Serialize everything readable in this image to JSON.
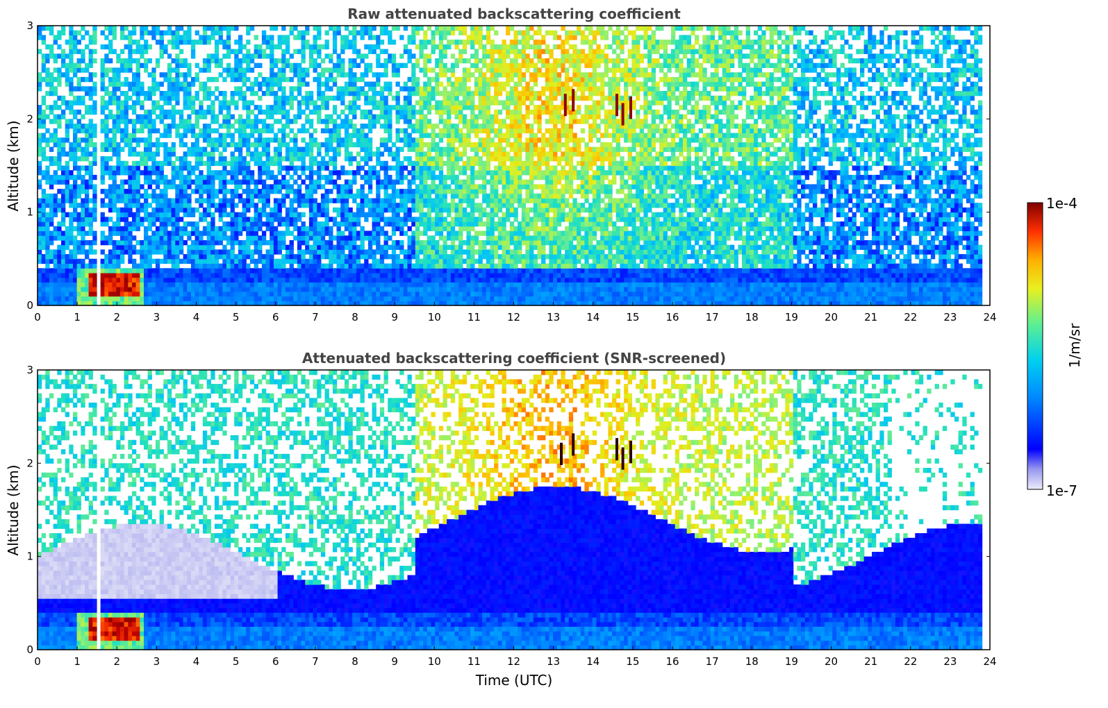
{
  "chart_data": [
    {
      "type": "heatmap",
      "title": "Raw attenuated backscattering coefficient",
      "xlabel": "",
      "ylabel": "Altitude (km)",
      "xlim": [
        0,
        24
      ],
      "ylim": [
        0,
        3
      ],
      "x_ticks": [
        "0",
        "1",
        "2",
        "3",
        "4",
        "5",
        "6",
        "7",
        "8",
        "9",
        "10",
        "11",
        "12",
        "13",
        "14",
        "15",
        "16",
        "17",
        "18",
        "19",
        "20",
        "21",
        "22",
        "23",
        "24"
      ],
      "y_ticks": [
        "0",
        "1",
        "2",
        "3"
      ],
      "data_end_x": 23.8,
      "features": {
        "boundary_layer_top_km": 0.4,
        "high_signal_band_km": [
          0.1,
          0.35
        ],
        "high_signal_hours": [
          1.0,
          2.7
        ],
        "enhanced_aloft_hours": [
          9.5,
          19.0
        ],
        "cloud_patches": [
          {
            "x": 13.3,
            "y": 2.15
          },
          {
            "x": 13.5,
            "y": 2.2
          },
          {
            "x": 14.6,
            "y": 2.15
          },
          {
            "x": 14.75,
            "y": 2.05
          },
          {
            "x": 14.95,
            "y": 2.12
          }
        ],
        "data_gap_x": [
          1.45,
          1.6
        ]
      }
    },
    {
      "type": "heatmap",
      "title": "Attenuated backscattering coefficient (SNR-screened)",
      "xlabel": "Time (UTC)",
      "ylabel": "Altitude (km)",
      "xlim": [
        0,
        24
      ],
      "ylim": [
        0,
        3
      ],
      "x_ticks": [
        "0",
        "1",
        "2",
        "3",
        "4",
        "5",
        "6",
        "7",
        "8",
        "9",
        "10",
        "11",
        "12",
        "13",
        "14",
        "15",
        "16",
        "17",
        "18",
        "19",
        "20",
        "21",
        "22",
        "23",
        "24"
      ],
      "y_ticks": [
        "0",
        "1",
        "2",
        "3"
      ],
      "data_end_x": 23.8,
      "features": {
        "boundary_layer_top_km": 0.4,
        "screened_fill_top_km": 1.0,
        "high_signal_band_km": [
          0.1,
          0.35
        ],
        "high_signal_hours": [
          1.0,
          2.7
        ],
        "enhanced_aloft_hours": [
          9.5,
          19.0
        ],
        "cloud_patches": [
          {
            "x": 13.2,
            "y": 2.1
          },
          {
            "x": 13.5,
            "y": 2.2
          },
          {
            "x": 14.6,
            "y": 2.15
          },
          {
            "x": 14.75,
            "y": 2.05
          },
          {
            "x": 14.95,
            "y": 2.12
          }
        ],
        "data_gap_x": [
          1.45,
          1.6
        ]
      }
    }
  ],
  "colorbar": {
    "label": "1/m/sr",
    "max_label": "1e-4",
    "min_label": "1e-7",
    "colors": [
      "#e8e8f8",
      "#b0b0f0",
      "#0000ff",
      "#0070ff",
      "#00c0ff",
      "#20e0c0",
      "#80f080",
      "#e0f020",
      "#ffc000",
      "#ff4000",
      "#c00000",
      "#800000"
    ]
  }
}
